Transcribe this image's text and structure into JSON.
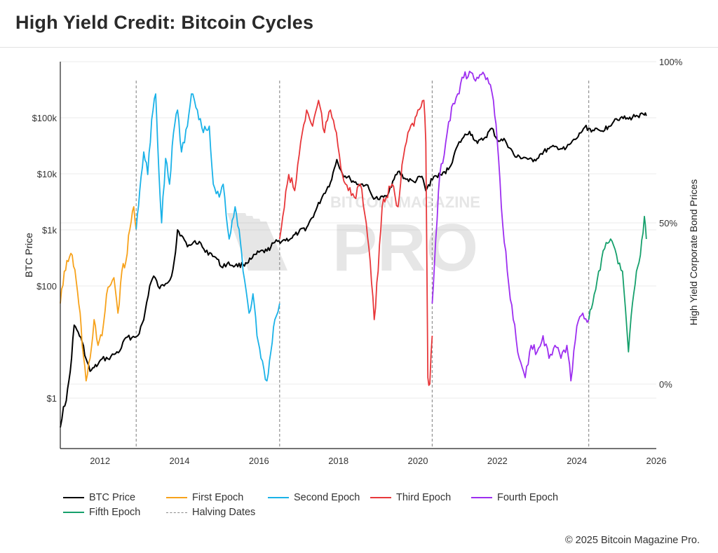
{
  "header": {
    "title": "High Yield Credit: Bitcoin Cycles"
  },
  "footer": {
    "copyright": "© 2025 Bitcoin Magazine Pro."
  },
  "watermark": {
    "top": "BITCOIN MAGAZINE",
    "main": "PRO"
  },
  "colors": {
    "btc": "#000000",
    "first": "#f7a21b",
    "second": "#1ab2e8",
    "third": "#e8373a",
    "fourth": "#9d2ef0",
    "fifth": "#16a06c",
    "halving": "#888888",
    "grid": "#ebebeb"
  },
  "legend": [
    {
      "label": "BTC Price",
      "color": "#000000",
      "style": "solid"
    },
    {
      "label": "First Epoch",
      "color": "#f7a21b",
      "style": "solid"
    },
    {
      "label": "Second Epoch",
      "color": "#1ab2e8",
      "style": "solid"
    },
    {
      "label": "Third Epoch",
      "color": "#e8373a",
      "style": "solid"
    },
    {
      "label": "Fourth Epoch",
      "color": "#9d2ef0",
      "style": "solid"
    },
    {
      "label": "Fifth Epoch",
      "color": "#16a06c",
      "style": "solid"
    },
    {
      "label": "Halving Dates",
      "color": "#888888",
      "style": "dashed"
    }
  ],
  "chart_data": {
    "type": "line",
    "title": "High Yield Credit: Bitcoin Cycles",
    "xlabel": "",
    "ylabel_left": "BTC Price",
    "ylabel_right": "High Yield Corporate Bond Prices",
    "x_range": [
      2011.0,
      2026.0
    ],
    "x_ticks": [
      2012,
      2014,
      2016,
      2018,
      2020,
      2022,
      2024,
      2026
    ],
    "y_left_scale": "log",
    "y_left_range_log10": [
      -0.9,
      6.0
    ],
    "y_left_ticks": [
      {
        "value": 1,
        "label": "$1"
      },
      {
        "value": 100,
        "label": "$100"
      },
      {
        "value": 1000,
        "label": "$1k"
      },
      {
        "value": 10000,
        "label": "$10k"
      },
      {
        "value": 100000,
        "label": "$100k"
      }
    ],
    "y_right_range": [
      -0.2,
      1.0
    ],
    "y_right_ticks": [
      {
        "value": 0,
        "label": "0%"
      },
      {
        "value": 0.5,
        "label": "50%"
      },
      {
        "value": 1.0,
        "label": "100%"
      }
    ],
    "halving_dates": [
      2012.91,
      2016.52,
      2020.36,
      2024.3
    ],
    "series": [
      {
        "name": "BTC Price",
        "axis": "left",
        "color": "#000000",
        "x": [
          2011.0,
          2011.08,
          2011.15,
          2011.25,
          2011.35,
          2011.45,
          2011.55,
          2011.65,
          2011.75,
          2011.85,
          2011.95,
          2012.05,
          2012.2,
          2012.35,
          2012.5,
          2012.65,
          2012.8,
          2012.95,
          2013.1,
          2013.25,
          2013.35,
          2013.5,
          2013.65,
          2013.8,
          2013.9,
          2013.95,
          2014.05,
          2014.2,
          2014.35,
          2014.5,
          2014.65,
          2014.8,
          2014.95,
          2015.05,
          2015.2,
          2015.4,
          2015.6,
          2015.8,
          2016.0,
          2016.2,
          2016.4,
          2016.6,
          2016.8,
          2017.0,
          2017.2,
          2017.4,
          2017.6,
          2017.8,
          2017.96,
          2018.1,
          2018.3,
          2018.5,
          2018.7,
          2018.85,
          2019.0,
          2019.2,
          2019.4,
          2019.5,
          2019.7,
          2019.9,
          2020.1,
          2020.2,
          2020.4,
          2020.6,
          2020.8,
          2021.0,
          2021.15,
          2021.3,
          2021.5,
          2021.7,
          2021.86,
          2022.0,
          2022.2,
          2022.45,
          2022.7,
          2022.9,
          2023.1,
          2023.3,
          2023.5,
          2023.7,
          2023.85,
          2024.0,
          2024.2,
          2024.4,
          2024.6,
          2024.8,
          2024.96,
          2025.1,
          2025.3,
          2025.5,
          2025.7,
          2025.75
        ],
        "values": [
          0.3,
          0.7,
          0.9,
          3,
          20,
          15,
          10,
          5,
          3,
          3.5,
          4,
          5,
          5,
          6,
          7,
          12,
          12,
          13,
          25,
          100,
          150,
          90,
          110,
          150,
          400,
          1000,
          800,
          500,
          600,
          620,
          400,
          380,
          300,
          220,
          250,
          230,
          240,
          300,
          400,
          420,
          600,
          650,
          700,
          900,
          1100,
          2000,
          4000,
          7000,
          18000,
          10000,
          8000,
          6500,
          6400,
          4000,
          3500,
          4000,
          8000,
          11000,
          8000,
          7200,
          9000,
          5000,
          9000,
          9500,
          13000,
          32000,
          45000,
          57000,
          35000,
          45000,
          65000,
          40000,
          39000,
          20000,
          19500,
          16500,
          23000,
          28000,
          30000,
          27000,
          35000,
          43000,
          68000,
          60000,
          58000,
          70000,
          95000,
          100000,
          95000,
          110000,
          112000,
          108000
        ]
      },
      {
        "name": "First Epoch",
        "axis": "right",
        "color": "#f7a21b",
        "x": [
          2011.0,
          2011.1,
          2011.2,
          2011.3,
          2011.4,
          2011.5,
          2011.55,
          2011.65,
          2011.75,
          2011.85,
          2011.95,
          2012.05,
          2012.2,
          2012.35,
          2012.45,
          2012.55,
          2012.65,
          2012.75,
          2012.85,
          2012.91
        ],
        "values": [
          0.25,
          0.35,
          0.38,
          0.4,
          0.32,
          0.22,
          0.12,
          0.01,
          0.08,
          0.2,
          0.12,
          0.15,
          0.3,
          0.33,
          0.22,
          0.35,
          0.38,
          0.48,
          0.55,
          0.48
        ]
      },
      {
        "name": "Second Epoch",
        "axis": "right",
        "color": "#1ab2e8",
        "x": [
          2012.91,
          2013.0,
          2013.1,
          2013.2,
          2013.3,
          2013.4,
          2013.45,
          2013.55,
          2013.65,
          2013.75,
          2013.85,
          2013.95,
          2014.05,
          2014.2,
          2014.3,
          2014.45,
          2014.6,
          2014.75,
          2014.85,
          2015.0,
          2015.1,
          2015.25,
          2015.4,
          2015.5,
          2015.6,
          2015.75,
          2015.85,
          2015.95,
          2016.05,
          2016.2,
          2016.3,
          2016.4,
          2016.52
        ],
        "values": [
          0.48,
          0.6,
          0.72,
          0.65,
          0.82,
          0.9,
          0.75,
          0.5,
          0.7,
          0.62,
          0.78,
          0.85,
          0.72,
          0.8,
          0.9,
          0.85,
          0.78,
          0.8,
          0.62,
          0.58,
          0.62,
          0.45,
          0.55,
          0.48,
          0.35,
          0.22,
          0.28,
          0.15,
          0.08,
          0.01,
          0.1,
          0.2,
          0.25
        ]
      },
      {
        "name": "Third Epoch",
        "axis": "right",
        "color": "#e8373a",
        "x": [
          2016.52,
          2016.6,
          2016.75,
          2016.9,
          2017.05,
          2017.2,
          2017.35,
          2017.5,
          2017.65,
          2017.8,
          2017.95,
          2018.1,
          2018.25,
          2018.4,
          2018.55,
          2018.7,
          2018.8,
          2018.9,
          2019.0,
          2019.1,
          2019.2,
          2019.35,
          2019.5,
          2019.6,
          2019.75,
          2019.9,
          2020.0,
          2020.08,
          2020.15,
          2020.2,
          2020.25,
          2020.3,
          2020.36
        ],
        "values": [
          0.45,
          0.52,
          0.65,
          0.6,
          0.75,
          0.85,
          0.8,
          0.88,
          0.78,
          0.85,
          0.78,
          0.65,
          0.6,
          0.58,
          0.62,
          0.5,
          0.38,
          0.2,
          0.35,
          0.55,
          0.58,
          0.62,
          0.55,
          0.68,
          0.78,
          0.8,
          0.85,
          0.86,
          0.88,
          0.75,
          0.02,
          0.0,
          0.15
        ]
      },
      {
        "name": "Fourth Epoch",
        "axis": "right",
        "color": "#9d2ef0",
        "x": [
          2020.36,
          2020.45,
          2020.55,
          2020.7,
          2020.85,
          2021.0,
          2021.15,
          2021.3,
          2021.45,
          2021.6,
          2021.75,
          2021.9,
          2022.0,
          2022.1,
          2022.25,
          2022.4,
          2022.55,
          2022.7,
          2022.85,
          2023.0,
          2023.15,
          2023.3,
          2023.45,
          2023.6,
          2023.75,
          2023.85,
          2024.0,
          2024.15,
          2024.3
        ],
        "values": [
          0.25,
          0.45,
          0.65,
          0.75,
          0.86,
          0.9,
          0.95,
          0.97,
          0.94,
          0.96,
          0.95,
          0.88,
          0.75,
          0.55,
          0.35,
          0.2,
          0.08,
          0.02,
          0.12,
          0.1,
          0.15,
          0.08,
          0.12,
          0.08,
          0.12,
          0.01,
          0.18,
          0.22,
          0.2
        ]
      },
      {
        "name": "Fifth Epoch",
        "axis": "right",
        "color": "#16a06c",
        "x": [
          2024.3,
          2024.4,
          2024.55,
          2024.7,
          2024.85,
          2025.0,
          2025.15,
          2025.3,
          2025.4,
          2025.5,
          2025.6,
          2025.7,
          2025.75
        ],
        "values": [
          0.2,
          0.25,
          0.35,
          0.42,
          0.45,
          0.4,
          0.35,
          0.1,
          0.25,
          0.35,
          0.4,
          0.52,
          0.45
        ]
      }
    ]
  }
}
